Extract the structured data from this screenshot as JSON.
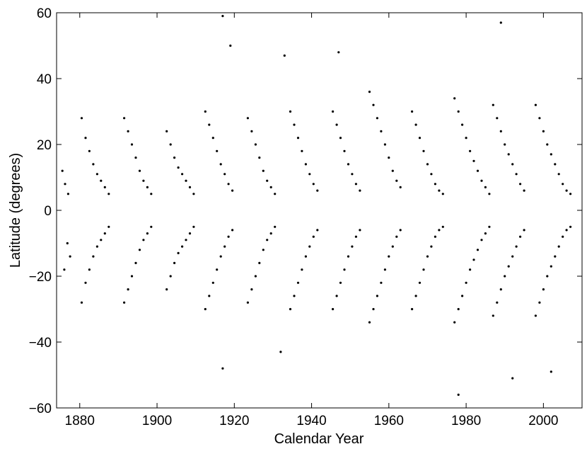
{
  "chart_data": {
    "type": "scatter",
    "title": "",
    "xlabel": "Calendar Year",
    "ylabel": "Latitude (degrees)",
    "xlim": [
      1874,
      2010
    ],
    "ylim": [
      -60,
      60
    ],
    "xticks": [
      1880,
      1900,
      1920,
      1940,
      1960,
      1980,
      2000
    ],
    "yticks": [
      -60,
      -40,
      -20,
      0,
      20,
      40,
      60
    ],
    "xtick_labels": [
      "1880",
      "1900",
      "1920",
      "1940",
      "1960",
      "1980",
      "2000"
    ],
    "ytick_labels": [
      "−60",
      "−40",
      "−20",
      "0",
      "20",
      "40",
      "60"
    ],
    "grid": false,
    "legend": "none",
    "marker_color": "#000000",
    "series": [
      {
        "values_note_free": true,
        "points": [
          [
            1875.5,
            12
          ],
          [
            1876.2,
            8
          ],
          [
            1877.0,
            5
          ],
          [
            1876.8,
            -10
          ],
          [
            1877.5,
            -14
          ],
          [
            1876.0,
            -18
          ],
          [
            1880.5,
            28
          ],
          [
            1881.5,
            22
          ],
          [
            1882.5,
            18
          ],
          [
            1883.5,
            14
          ],
          [
            1884.5,
            11
          ],
          [
            1885.5,
            9
          ],
          [
            1886.5,
            7
          ],
          [
            1887.5,
            5
          ],
          [
            1880.5,
            -28
          ],
          [
            1881.5,
            -22
          ],
          [
            1882.5,
            -18
          ],
          [
            1883.5,
            -14
          ],
          [
            1884.5,
            -11
          ],
          [
            1885.5,
            -9
          ],
          [
            1886.5,
            -7
          ],
          [
            1887.5,
            -5
          ],
          [
            1891.5,
            28
          ],
          [
            1892.5,
            24
          ],
          [
            1893.5,
            20
          ],
          [
            1894.5,
            16
          ],
          [
            1895.5,
            12
          ],
          [
            1896.5,
            9
          ],
          [
            1897.5,
            7
          ],
          [
            1898.5,
            5
          ],
          [
            1891.5,
            -28
          ],
          [
            1892.5,
            -24
          ],
          [
            1893.5,
            -20
          ],
          [
            1894.5,
            -16
          ],
          [
            1895.5,
            -12
          ],
          [
            1896.5,
            -9
          ],
          [
            1897.5,
            -7
          ],
          [
            1898.5,
            -5
          ],
          [
            1902.5,
            24
          ],
          [
            1903.5,
            20
          ],
          [
            1904.5,
            16
          ],
          [
            1905.5,
            13
          ],
          [
            1906.5,
            11
          ],
          [
            1907.5,
            9
          ],
          [
            1908.5,
            7
          ],
          [
            1909.5,
            5
          ],
          [
            1902.5,
            -24
          ],
          [
            1903.5,
            -20
          ],
          [
            1904.5,
            -16
          ],
          [
            1905.5,
            -13
          ],
          [
            1906.5,
            -11
          ],
          [
            1907.5,
            -9
          ],
          [
            1908.5,
            -7
          ],
          [
            1909.5,
            -5
          ],
          [
            1912.5,
            30
          ],
          [
            1913.5,
            26
          ],
          [
            1914.5,
            22
          ],
          [
            1915.5,
            18
          ],
          [
            1916.5,
            14
          ],
          [
            1917.5,
            11
          ],
          [
            1918.5,
            8
          ],
          [
            1919.5,
            6
          ],
          [
            1912.5,
            -30
          ],
          [
            1913.5,
            -26
          ],
          [
            1914.5,
            -22
          ],
          [
            1915.5,
            -18
          ],
          [
            1916.5,
            -14
          ],
          [
            1917.5,
            -11
          ],
          [
            1918.5,
            -8
          ],
          [
            1919.5,
            -6
          ],
          [
            1923.5,
            28
          ],
          [
            1924.5,
            24
          ],
          [
            1925.5,
            20
          ],
          [
            1926.5,
            16
          ],
          [
            1927.5,
            12
          ],
          [
            1928.5,
            9
          ],
          [
            1929.5,
            7
          ],
          [
            1930.5,
            5
          ],
          [
            1923.5,
            -28
          ],
          [
            1924.5,
            -24
          ],
          [
            1925.5,
            -20
          ],
          [
            1926.5,
            -16
          ],
          [
            1927.5,
            -12
          ],
          [
            1928.5,
            -9
          ],
          [
            1929.5,
            -7
          ],
          [
            1930.5,
            -5
          ],
          [
            1934.5,
            30
          ],
          [
            1935.5,
            26
          ],
          [
            1936.5,
            22
          ],
          [
            1937.5,
            18
          ],
          [
            1938.5,
            14
          ],
          [
            1939.5,
            11
          ],
          [
            1940.5,
            8
          ],
          [
            1941.5,
            6
          ],
          [
            1934.5,
            -30
          ],
          [
            1935.5,
            -26
          ],
          [
            1936.5,
            -22
          ],
          [
            1937.5,
            -18
          ],
          [
            1938.5,
            -14
          ],
          [
            1939.5,
            -11
          ],
          [
            1940.5,
            -8
          ],
          [
            1941.5,
            -6
          ],
          [
            1945.5,
            30
          ],
          [
            1946.5,
            26
          ],
          [
            1947.5,
            22
          ],
          [
            1948.5,
            18
          ],
          [
            1949.5,
            14
          ],
          [
            1950.5,
            11
          ],
          [
            1951.5,
            8
          ],
          [
            1952.5,
            6
          ],
          [
            1945.5,
            -30
          ],
          [
            1946.5,
            -26
          ],
          [
            1947.5,
            -22
          ],
          [
            1948.5,
            -18
          ],
          [
            1949.5,
            -14
          ],
          [
            1950.5,
            -11
          ],
          [
            1951.5,
            -8
          ],
          [
            1952.5,
            -6
          ],
          [
            1955.0,
            36
          ],
          [
            1956.0,
            32
          ],
          [
            1957.0,
            28
          ],
          [
            1958.0,
            24
          ],
          [
            1959.0,
            20
          ],
          [
            1960.0,
            16
          ],
          [
            1961.0,
            12
          ],
          [
            1962.0,
            9
          ],
          [
            1963.0,
            7
          ],
          [
            1955.0,
            -34
          ],
          [
            1956.0,
            -30
          ],
          [
            1957.0,
            -26
          ],
          [
            1958.0,
            -22
          ],
          [
            1959.0,
            -18
          ],
          [
            1960.0,
            -14
          ],
          [
            1961.0,
            -11
          ],
          [
            1962.0,
            -8
          ],
          [
            1963.0,
            -6
          ],
          [
            1966.0,
            30
          ],
          [
            1967.0,
            26
          ],
          [
            1968.0,
            22
          ],
          [
            1969.0,
            18
          ],
          [
            1970.0,
            14
          ],
          [
            1971.0,
            11
          ],
          [
            1972.0,
            8
          ],
          [
            1973.0,
            6
          ],
          [
            1974.0,
            5
          ],
          [
            1966.0,
            -30
          ],
          [
            1967.0,
            -26
          ],
          [
            1968.0,
            -22
          ],
          [
            1969.0,
            -18
          ],
          [
            1970.0,
            -14
          ],
          [
            1971.0,
            -11
          ],
          [
            1972.0,
            -8
          ],
          [
            1973.0,
            -6
          ],
          [
            1974.0,
            -5
          ],
          [
            1977.0,
            34
          ],
          [
            1978.0,
            30
          ],
          [
            1979.0,
            26
          ],
          [
            1980.0,
            22
          ],
          [
            1981.0,
            18
          ],
          [
            1982.0,
            15
          ],
          [
            1983.0,
            12
          ],
          [
            1984.0,
            9
          ],
          [
            1985.0,
            7
          ],
          [
            1986.0,
            5
          ],
          [
            1977.0,
            -34
          ],
          [
            1978.0,
            -30
          ],
          [
            1979.0,
            -26
          ],
          [
            1980.0,
            -22
          ],
          [
            1981.0,
            -18
          ],
          [
            1982.0,
            -15
          ],
          [
            1983.0,
            -12
          ],
          [
            1984.0,
            -9
          ],
          [
            1985.0,
            -7
          ],
          [
            1986.0,
            -5
          ],
          [
            1987.0,
            32
          ],
          [
            1988.0,
            28
          ],
          [
            1989.0,
            24
          ],
          [
            1990.0,
            20
          ],
          [
            1991.0,
            17
          ],
          [
            1992.0,
            14
          ],
          [
            1993.0,
            11
          ],
          [
            1994.0,
            8
          ],
          [
            1995.0,
            6
          ],
          [
            1987.0,
            -32
          ],
          [
            1988.0,
            -28
          ],
          [
            1989.0,
            -24
          ],
          [
            1990.0,
            -20
          ],
          [
            1991.0,
            -17
          ],
          [
            1992.0,
            -14
          ],
          [
            1993.0,
            -11
          ],
          [
            1994.0,
            -8
          ],
          [
            1995.0,
            -6
          ],
          [
            1998.0,
            32
          ],
          [
            1999.0,
            28
          ],
          [
            2000.0,
            24
          ],
          [
            2001.0,
            20
          ],
          [
            2002.0,
            17
          ],
          [
            2003.0,
            14
          ],
          [
            2004.0,
            11
          ],
          [
            2005.0,
            8
          ],
          [
            2006.0,
            6
          ],
          [
            2007.0,
            5
          ],
          [
            1998.0,
            -32
          ],
          [
            1999.0,
            -28
          ],
          [
            2000.0,
            -24
          ],
          [
            2001.0,
            -20
          ],
          [
            2002.0,
            -17
          ],
          [
            2003.0,
            -14
          ],
          [
            2004.0,
            -11
          ],
          [
            2005.0,
            -8
          ],
          [
            2006.0,
            -6
          ],
          [
            2007.0,
            -5
          ],
          [
            1917.0,
            59
          ],
          [
            1919.0,
            50
          ],
          [
            1933.0,
            47
          ],
          [
            1947.0,
            48
          ],
          [
            1989.0,
            57
          ],
          [
            1978.0,
            -56
          ],
          [
            1992.0,
            -51
          ],
          [
            2002.0,
            -49
          ],
          [
            1917.0,
            -48
          ],
          [
            1932.0,
            -43
          ]
        ]
      }
    ]
  }
}
